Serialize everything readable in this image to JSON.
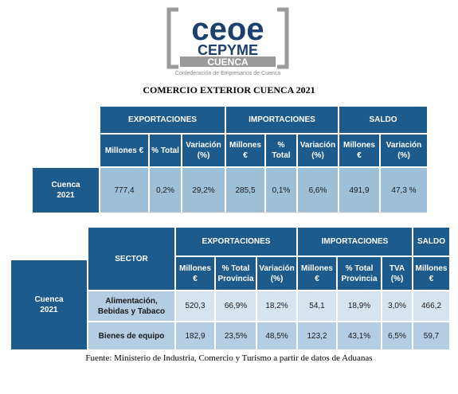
{
  "logo": {
    "brand": "ceoe",
    "name": "CEPYME",
    "region": "CUENCA",
    "tagline": "Confederación de Empresarios de Cuenca"
  },
  "title": "COMERCIO EXTERIOR CUENCA 2021",
  "table1": {
    "groups": [
      "EXPORTACIONES",
      "IMPORTACIONES",
      "SALDO"
    ],
    "columns": [
      "Millones €",
      "% Total",
      "Variación (%)",
      "Millones €",
      "% Total",
      "Variación (%)",
      "Millones €",
      "Variación (%)"
    ],
    "row_label": "Cuenca 2021",
    "values": [
      "777,4",
      "0,2%",
      "29,2%",
      "285,5",
      "0,1%",
      "6,6%",
      "491,9",
      "47,3 %"
    ]
  },
  "table2": {
    "sector_header": "SECTOR",
    "groups": [
      "EXPORTACIONES",
      "IMPORTACIONES",
      "SALDO"
    ],
    "columns": [
      "Millones €",
      "% Total Provincia",
      "Variación (%)",
      "Millones €",
      "% Total Provincia",
      "TVA (%)",
      "Millones €"
    ],
    "row_label": "Cuenca 2021",
    "rows": [
      [
        "Alimentación, Bebidas y Tabaco",
        "520,3",
        "66,9%",
        "18,2%",
        "54,1",
        "18,9%",
        "3,0%",
        "466,2"
      ],
      [
        "Bienes de equipo",
        "182,9",
        "23,5%",
        "48,5%",
        "123,2",
        "43,1%",
        "6,5%",
        "59,7"
      ]
    ]
  },
  "source": "Fuente: Ministerio de Industria, Comercio y Turismo a partir de datos de Aduanas"
}
